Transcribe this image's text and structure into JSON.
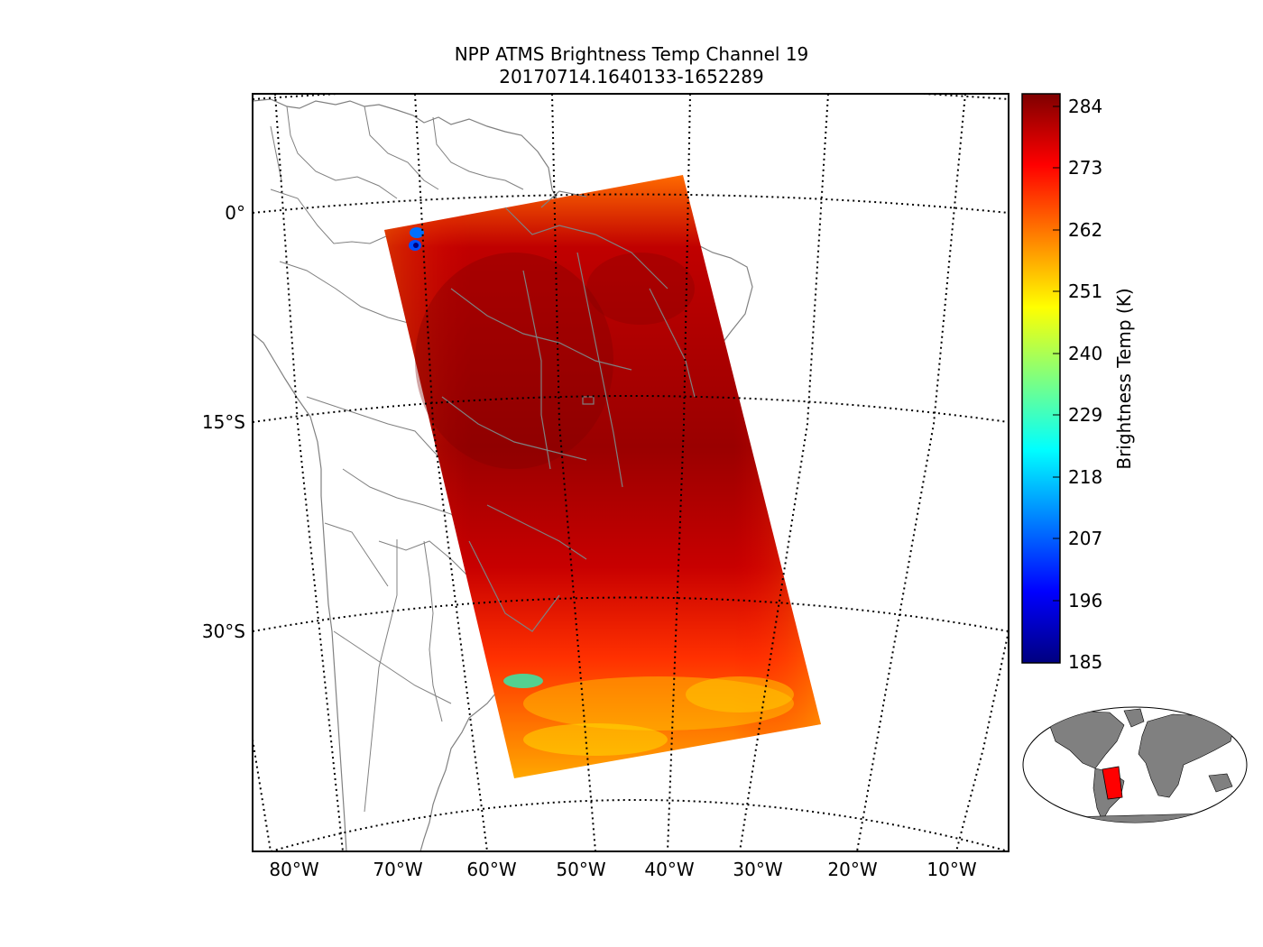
{
  "title": {
    "line1": "NPP ATMS Brightness Temp Channel 19",
    "line2": "20170714.1640133-1652289"
  },
  "map": {
    "lat_labels": [
      "0°",
      "15°S",
      "30°S"
    ],
    "lon_labels": [
      "80°W",
      "70°W",
      "60°W",
      "50°W",
      "40°W",
      "30°W",
      "20°W",
      "10°W"
    ],
    "swath_colormap": "jet"
  },
  "colorbar": {
    "label": "Brightness Temp (K)",
    "ticks": [
      "284",
      "273",
      "262",
      "251",
      "240",
      "229",
      "218",
      "207",
      "196",
      "185"
    ],
    "min": 185,
    "max": 287,
    "colors": [
      "#00007f",
      "#0000ff",
      "#007fff",
      "#00ffff",
      "#7fff7f",
      "#ffff00",
      "#ff7f00",
      "#ff0000",
      "#7f0000"
    ]
  },
  "inset": {
    "land_color": "#808080",
    "swath_color": "#ff0000"
  }
}
